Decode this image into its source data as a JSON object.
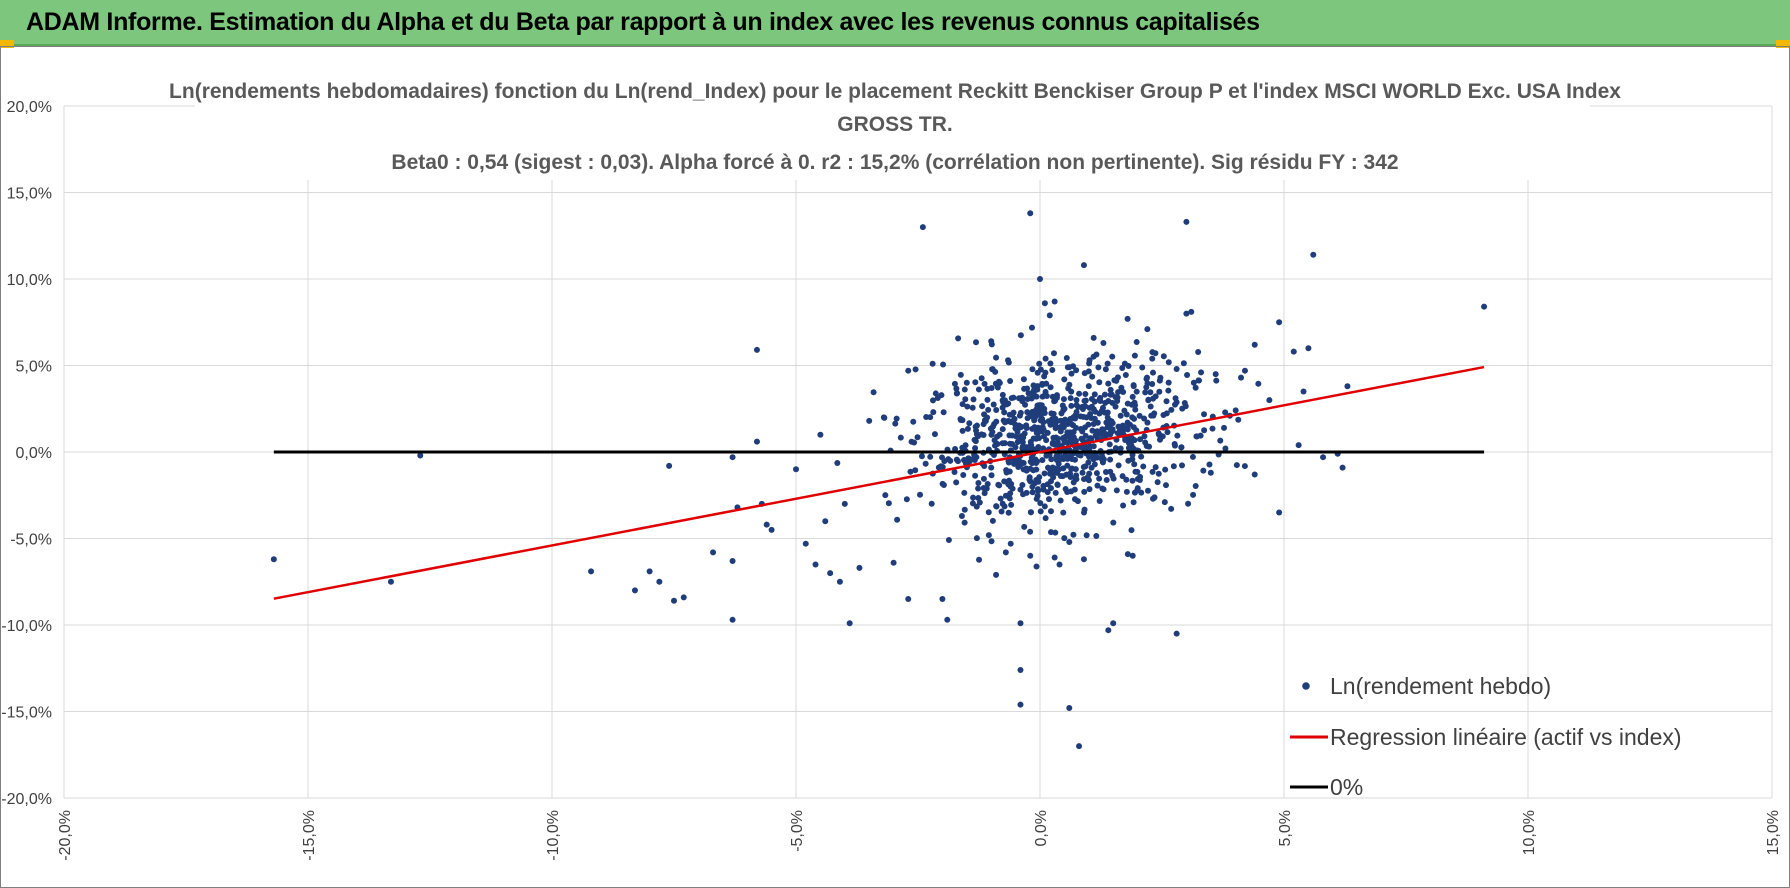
{
  "header": {
    "title": "ADAM Informe. Estimation du Alpha et du Beta par rapport à un index avec les revenus connus capitalisés"
  },
  "chart_data": {
    "type": "scatter",
    "title": "Ln(rendements hebdomadaires) fonction du Ln(rend_Index) pour le placement Reckitt Benckiser Group P et l'index MSCI WORLD Exc. USA Index GROSS TR.",
    "title_lines": [
      "Ln(rendements hebdomadaires) fonction du Ln(rend_Index) pour le placement Reckitt Benckiser Group P et l'index MSCI WORLD Exc. USA Index",
      "GROSS TR."
    ],
    "subtitle": "Beta0 : 0,54 (sigest : 0,03). Alpha forcé à 0. r2 : 15,2% (corrélation non pertinente). Sig résidu FY : 342",
    "xlim": [
      -0.2,
      0.15
    ],
    "ylim": [
      -0.2,
      0.2
    ],
    "x_ticks": [
      "-20,0%",
      "-15,0%",
      "-10,0%",
      "-5,0%",
      "0,0%",
      "5,0%",
      "10,0%",
      "15,0%"
    ],
    "y_ticks": [
      "20,0%",
      "15,0%",
      "10,0%",
      "5,0%",
      "0,0%",
      "-5,0%",
      "-10,0%",
      "-15,0%",
      "-20,0%"
    ],
    "x_tick_values": [
      -0.2,
      -0.15,
      -0.1,
      -0.05,
      0,
      0.05,
      0.1,
      0.15
    ],
    "y_tick_values": [
      0.2,
      0.15,
      0.1,
      0.05,
      0,
      -0.05,
      -0.1,
      -0.15,
      -0.2
    ],
    "grid": true,
    "legend_position": "bottom-right",
    "colors": {
      "points": "#1f3d7a",
      "regression": "#e00000",
      "zero_line": "#000000",
      "grid": "#d9d9d9",
      "header": "#7dc67d"
    },
    "series": [
      {
        "name": "Ln(rendement hebdo)",
        "kind": "points",
        "cluster": {
          "center_x": 0.004,
          "center_y": 0.008,
          "sd_x": 0.014,
          "sd_y": 0.022,
          "count": 900
        },
        "points": [
          [
            -0.157,
            -0.062
          ],
          [
            -0.133,
            -0.075
          ],
          [
            -0.127,
            -0.002
          ],
          [
            -0.092,
            -0.069
          ],
          [
            -0.083,
            -0.08
          ],
          [
            -0.08,
            -0.069
          ],
          [
            -0.078,
            -0.075
          ],
          [
            -0.075,
            -0.086
          ],
          [
            -0.073,
            -0.084
          ],
          [
            -0.076,
            -0.008
          ],
          [
            -0.067,
            -0.058
          ],
          [
            -0.063,
            -0.063
          ],
          [
            -0.063,
            -0.097
          ],
          [
            -0.063,
            -0.003
          ],
          [
            -0.058,
            0.006
          ],
          [
            -0.058,
            0.059
          ],
          [
            -0.062,
            -0.032
          ],
          [
            -0.057,
            -0.03
          ],
          [
            -0.056,
            -0.042
          ],
          [
            -0.055,
            -0.045
          ],
          [
            -0.05,
            -0.01
          ],
          [
            -0.048,
            -0.053
          ],
          [
            -0.046,
            -0.065
          ],
          [
            -0.045,
            0.01
          ],
          [
            -0.044,
            -0.04
          ],
          [
            -0.043,
            -0.07
          ],
          [
            -0.041,
            -0.075
          ],
          [
            -0.04,
            -0.03
          ],
          [
            -0.039,
            -0.099
          ],
          [
            -0.037,
            -0.067
          ],
          [
            -0.035,
            0.018
          ],
          [
            -0.032,
            0.02
          ],
          [
            -0.03,
            -0.064
          ],
          [
            -0.027,
            -0.085
          ],
          [
            -0.027,
            0.047
          ],
          [
            -0.024,
            0.13
          ],
          [
            -0.022,
            0.051
          ],
          [
            -0.02,
            -0.085
          ],
          [
            -0.019,
            -0.097
          ],
          [
            -0.017,
            0.034
          ],
          [
            -0.016,
            -0.037
          ],
          [
            -0.015,
            0.04
          ],
          [
            -0.01,
            0.064
          ],
          [
            -0.009,
            -0.071
          ],
          [
            -0.007,
            -0.058
          ],
          [
            -0.006,
            -0.053
          ],
          [
            -0.004,
            -0.126
          ],
          [
            -0.004,
            -0.146
          ],
          [
            -0.004,
            -0.099
          ],
          [
            -0.002,
            0.138
          ],
          [
            -0.002,
            -0.06
          ],
          [
            0.0,
            0.1
          ],
          [
            0.001,
            0.086
          ],
          [
            0.002,
            0.079
          ],
          [
            0.003,
            0.087
          ],
          [
            0.003,
            -0.061
          ],
          [
            0.004,
            -0.065
          ],
          [
            0.006,
            -0.052
          ],
          [
            0.006,
            -0.148
          ],
          [
            0.008,
            -0.17
          ],
          [
            0.009,
            -0.062
          ],
          [
            0.009,
            0.108
          ],
          [
            0.011,
            0.066
          ],
          [
            0.013,
            0.063
          ],
          [
            0.014,
            -0.103
          ],
          [
            0.015,
            -0.099
          ],
          [
            0.018,
            -0.059
          ],
          [
            0.019,
            -0.06
          ],
          [
            0.022,
            0.071
          ],
          [
            0.023,
            0.054
          ],
          [
            0.028,
            -0.105
          ],
          [
            0.028,
            0.048
          ],
          [
            0.03,
            0.133
          ],
          [
            0.03,
            0.08
          ],
          [
            0.031,
            0.081
          ],
          [
            0.033,
            0.046
          ],
          [
            0.035,
            -0.012
          ],
          [
            0.036,
            0.045
          ],
          [
            0.038,
            0.002
          ],
          [
            0.042,
            0.047
          ],
          [
            0.044,
            0.062
          ],
          [
            0.044,
            -0.013
          ],
          [
            0.047,
            0.03
          ],
          [
            0.049,
            0.075
          ],
          [
            0.049,
            -0.035
          ],
          [
            0.052,
            0.058
          ],
          [
            0.053,
            0.004
          ],
          [
            0.054,
            0.035
          ],
          [
            0.055,
            0.06
          ],
          [
            0.056,
            0.114
          ],
          [
            0.058,
            -0.003
          ],
          [
            0.061,
            -0.001
          ],
          [
            0.062,
            -0.009
          ],
          [
            0.063,
            0.038
          ],
          [
            0.091,
            0.084
          ]
        ]
      },
      {
        "name": "Regression linéaire (actif vs index)",
        "kind": "line",
        "x": [
          -0.157,
          0.091
        ],
        "y": [
          -0.0848,
          0.0491
        ]
      },
      {
        "name": "0%",
        "kind": "line",
        "x": [
          -0.157,
          0.091
        ],
        "y": [
          0,
          0
        ]
      }
    ]
  }
}
